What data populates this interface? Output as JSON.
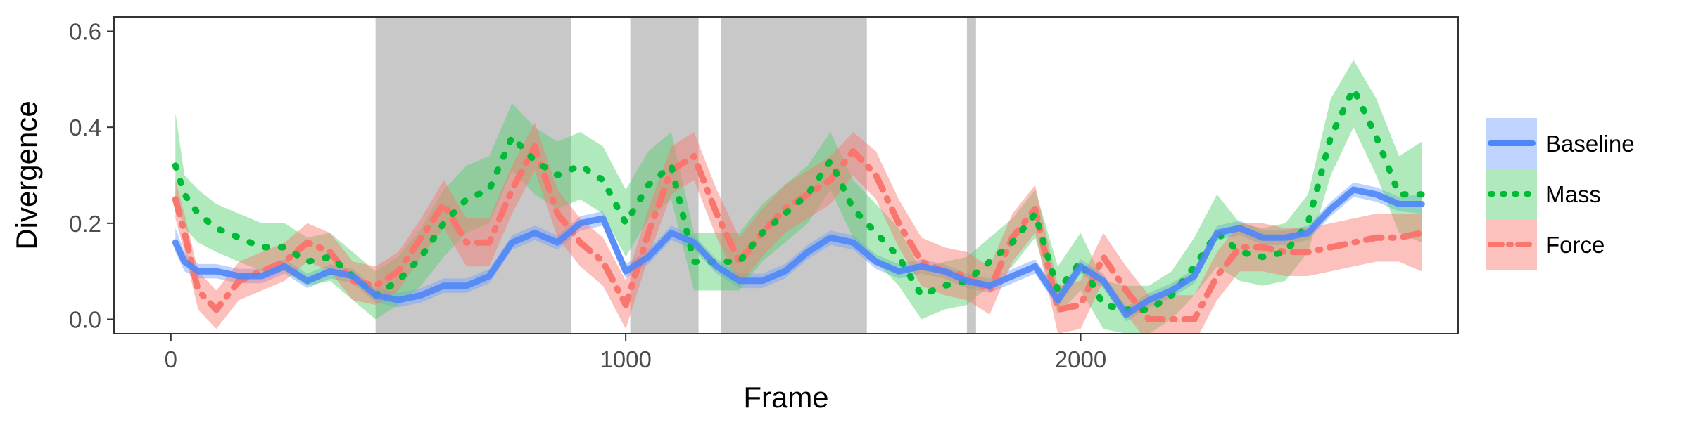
{
  "chart_data": {
    "type": "line",
    "title": "",
    "xlabel": "Frame",
    "ylabel": "Divergence",
    "xlim": [
      -125,
      2830
    ],
    "ylim": [
      -0.03,
      0.63
    ],
    "x_ticks": [
      0,
      1000,
      2000
    ],
    "x_tick_labels": [
      "0",
      "1000",
      "2000"
    ],
    "y_ticks": [
      0,
      0.2,
      0.4,
      0.6
    ],
    "y_tick_labels": [
      "0.0",
      "0.2",
      "0.4",
      "0.6"
    ],
    "grid": false,
    "legend_position": "right",
    "shaded_regions": [
      [
        450,
        880
      ],
      [
        1010,
        1160
      ],
      [
        1210,
        1530
      ],
      [
        1750,
        1770
      ]
    ],
    "shaded_color": "#c8c8c8",
    "series": [
      {
        "name": "Baseline",
        "color": "#4f86f7",
        "band_color": "#6fa0ff",
        "line_style": "solid",
        "x": [
          10,
          30,
          60,
          100,
          150,
          200,
          250,
          300,
          350,
          400,
          450,
          500,
          550,
          600,
          650,
          700,
          750,
          800,
          850,
          900,
          950,
          1000,
          1050,
          1100,
          1150,
          1200,
          1250,
          1300,
          1350,
          1400,
          1450,
          1500,
          1550,
          1600,
          1650,
          1700,
          1750,
          1800,
          1850,
          1900,
          1950,
          2000,
          2050,
          2100,
          2150,
          2200,
          2250,
          2300,
          2350,
          2400,
          2450,
          2500,
          2550,
          2600,
          2650,
          2700,
          2750
        ],
        "y": [
          0.16,
          0.12,
          0.1,
          0.1,
          0.09,
          0.09,
          0.11,
          0.08,
          0.1,
          0.09,
          0.05,
          0.04,
          0.05,
          0.07,
          0.07,
          0.09,
          0.16,
          0.18,
          0.16,
          0.2,
          0.21,
          0.1,
          0.13,
          0.18,
          0.16,
          0.11,
          0.08,
          0.08,
          0.1,
          0.14,
          0.17,
          0.16,
          0.12,
          0.1,
          0.11,
          0.1,
          0.08,
          0.07,
          0.09,
          0.11,
          0.04,
          0.11,
          0.08,
          0.01,
          0.04,
          0.06,
          0.09,
          0.18,
          0.19,
          0.17,
          0.17,
          0.18,
          0.23,
          0.27,
          0.26,
          0.24,
          0.24
        ],
        "lower": [
          0.14,
          0.1,
          0.085,
          0.085,
          0.075,
          0.075,
          0.095,
          0.065,
          0.085,
          0.075,
          0.035,
          0.025,
          0.035,
          0.055,
          0.055,
          0.075,
          0.145,
          0.165,
          0.145,
          0.185,
          0.195,
          0.085,
          0.115,
          0.165,
          0.145,
          0.095,
          0.065,
          0.065,
          0.085,
          0.125,
          0.155,
          0.145,
          0.105,
          0.085,
          0.095,
          0.085,
          0.065,
          0.055,
          0.075,
          0.095,
          0.025,
          0.095,
          0.065,
          -0.005,
          0.025,
          0.045,
          0.075,
          0.165,
          0.175,
          0.155,
          0.155,
          0.165,
          0.215,
          0.255,
          0.245,
          0.225,
          0.22
        ],
        "upper": [
          0.19,
          0.14,
          0.115,
          0.115,
          0.105,
          0.105,
          0.125,
          0.095,
          0.115,
          0.105,
          0.065,
          0.055,
          0.065,
          0.085,
          0.085,
          0.105,
          0.175,
          0.195,
          0.175,
          0.215,
          0.225,
          0.115,
          0.145,
          0.195,
          0.175,
          0.125,
          0.095,
          0.095,
          0.115,
          0.155,
          0.185,
          0.175,
          0.135,
          0.115,
          0.125,
          0.115,
          0.095,
          0.085,
          0.105,
          0.125,
          0.055,
          0.125,
          0.095,
          0.025,
          0.055,
          0.075,
          0.105,
          0.195,
          0.205,
          0.185,
          0.185,
          0.195,
          0.245,
          0.285,
          0.275,
          0.255,
          0.26
        ]
      },
      {
        "name": "Mass",
        "color": "#00ba38",
        "band_color": "#4fd06a",
        "line_style": "dotted",
        "x": [
          10,
          30,
          60,
          100,
          150,
          200,
          250,
          300,
          350,
          400,
          450,
          500,
          550,
          600,
          650,
          700,
          750,
          800,
          850,
          900,
          950,
          1000,
          1050,
          1100,
          1150,
          1200,
          1250,
          1300,
          1350,
          1400,
          1450,
          1500,
          1550,
          1600,
          1650,
          1700,
          1750,
          1800,
          1850,
          1900,
          1950,
          2000,
          2050,
          2100,
          2150,
          2200,
          2250,
          2300,
          2350,
          2400,
          2450,
          2500,
          2550,
          2600,
          2650,
          2700,
          2750
        ],
        "y": [
          0.32,
          0.26,
          0.22,
          0.19,
          0.17,
          0.15,
          0.15,
          0.12,
          0.13,
          0.09,
          0.05,
          0.08,
          0.13,
          0.2,
          0.25,
          0.27,
          0.38,
          0.33,
          0.3,
          0.32,
          0.29,
          0.2,
          0.28,
          0.32,
          0.12,
          0.12,
          0.12,
          0.18,
          0.22,
          0.26,
          0.33,
          0.23,
          0.18,
          0.13,
          0.05,
          0.07,
          0.08,
          0.12,
          0.16,
          0.22,
          0.06,
          0.12,
          0.03,
          0.02,
          0.02,
          0.05,
          0.11,
          0.18,
          0.14,
          0.13,
          0.14,
          0.2,
          0.38,
          0.48,
          0.38,
          0.26,
          0.26
        ],
        "lower": [
          0.24,
          0.19,
          0.16,
          0.14,
          0.12,
          0.1,
          0.1,
          0.07,
          0.08,
          0.04,
          0.0,
          0.03,
          0.07,
          0.13,
          0.18,
          0.2,
          0.31,
          0.26,
          0.23,
          0.25,
          0.22,
          0.13,
          0.21,
          0.25,
          0.06,
          0.06,
          0.06,
          0.12,
          0.16,
          0.2,
          0.27,
          0.17,
          0.12,
          0.07,
          0.0,
          0.02,
          0.03,
          0.07,
          0.11,
          0.17,
          0.01,
          0.06,
          -0.02,
          -0.03,
          -0.03,
          0.0,
          0.05,
          0.11,
          0.08,
          0.07,
          0.08,
          0.14,
          0.3,
          0.4,
          0.3,
          0.18,
          0.16
        ],
        "upper": [
          0.43,
          0.3,
          0.27,
          0.24,
          0.22,
          0.2,
          0.2,
          0.17,
          0.18,
          0.14,
          0.1,
          0.13,
          0.19,
          0.27,
          0.32,
          0.34,
          0.45,
          0.4,
          0.37,
          0.39,
          0.36,
          0.27,
          0.35,
          0.39,
          0.18,
          0.18,
          0.18,
          0.24,
          0.28,
          0.32,
          0.39,
          0.29,
          0.24,
          0.19,
          0.1,
          0.12,
          0.13,
          0.17,
          0.21,
          0.27,
          0.11,
          0.18,
          0.08,
          0.07,
          0.07,
          0.1,
          0.17,
          0.26,
          0.2,
          0.19,
          0.2,
          0.26,
          0.46,
          0.54,
          0.46,
          0.34,
          0.37
        ]
      },
      {
        "name": "Force",
        "color": "#f8766d",
        "band_color": "#f8766d",
        "line_style": "dotdash",
        "x": [
          10,
          30,
          60,
          100,
          150,
          200,
          250,
          300,
          350,
          400,
          450,
          500,
          550,
          600,
          650,
          700,
          750,
          800,
          850,
          900,
          950,
          1000,
          1050,
          1100,
          1150,
          1200,
          1250,
          1300,
          1350,
          1400,
          1450,
          1500,
          1550,
          1600,
          1650,
          1700,
          1750,
          1800,
          1850,
          1900,
          1950,
          2000,
          2050,
          2100,
          2150,
          2200,
          2250,
          2300,
          2350,
          2400,
          2450,
          2500,
          2550,
          2600,
          2650,
          2700,
          2750
        ],
        "y": [
          0.25,
          0.18,
          0.06,
          0.02,
          0.08,
          0.1,
          0.12,
          0.16,
          0.14,
          0.08,
          0.07,
          0.1,
          0.17,
          0.24,
          0.16,
          0.16,
          0.27,
          0.36,
          0.22,
          0.16,
          0.12,
          0.03,
          0.18,
          0.31,
          0.34,
          0.22,
          0.12,
          0.18,
          0.23,
          0.26,
          0.29,
          0.35,
          0.3,
          0.2,
          0.12,
          0.1,
          0.09,
          0.06,
          0.17,
          0.23,
          0.02,
          0.03,
          0.13,
          0.06,
          0.0,
          0.0,
          0.0,
          0.09,
          0.15,
          0.15,
          0.14,
          0.14,
          0.15,
          0.16,
          0.17,
          0.17,
          0.18
        ],
        "lower": [
          0.21,
          0.14,
          0.02,
          -0.02,
          0.04,
          0.06,
          0.08,
          0.12,
          0.1,
          0.04,
          0.03,
          0.06,
          0.13,
          0.19,
          0.11,
          0.11,
          0.22,
          0.31,
          0.17,
          0.11,
          0.07,
          -0.02,
          0.13,
          0.26,
          0.29,
          0.17,
          0.07,
          0.13,
          0.18,
          0.21,
          0.24,
          0.3,
          0.25,
          0.15,
          0.07,
          0.05,
          0.04,
          0.01,
          0.12,
          0.18,
          -0.03,
          -0.02,
          0.08,
          0.01,
          -0.05,
          -0.05,
          -0.05,
          0.04,
          0.1,
          0.1,
          0.09,
          0.09,
          0.1,
          0.11,
          0.12,
          0.12,
          0.1
        ],
        "upper": [
          0.29,
          0.22,
          0.1,
          0.06,
          0.12,
          0.14,
          0.16,
          0.2,
          0.18,
          0.12,
          0.11,
          0.14,
          0.21,
          0.29,
          0.21,
          0.21,
          0.32,
          0.41,
          0.27,
          0.21,
          0.17,
          0.08,
          0.23,
          0.36,
          0.39,
          0.27,
          0.17,
          0.23,
          0.28,
          0.31,
          0.34,
          0.39,
          0.35,
          0.25,
          0.17,
          0.15,
          0.14,
          0.11,
          0.22,
          0.28,
          0.07,
          0.08,
          0.18,
          0.11,
          0.05,
          0.05,
          0.05,
          0.14,
          0.2,
          0.2,
          0.19,
          0.19,
          0.2,
          0.21,
          0.22,
          0.22,
          0.22
        ]
      }
    ]
  }
}
